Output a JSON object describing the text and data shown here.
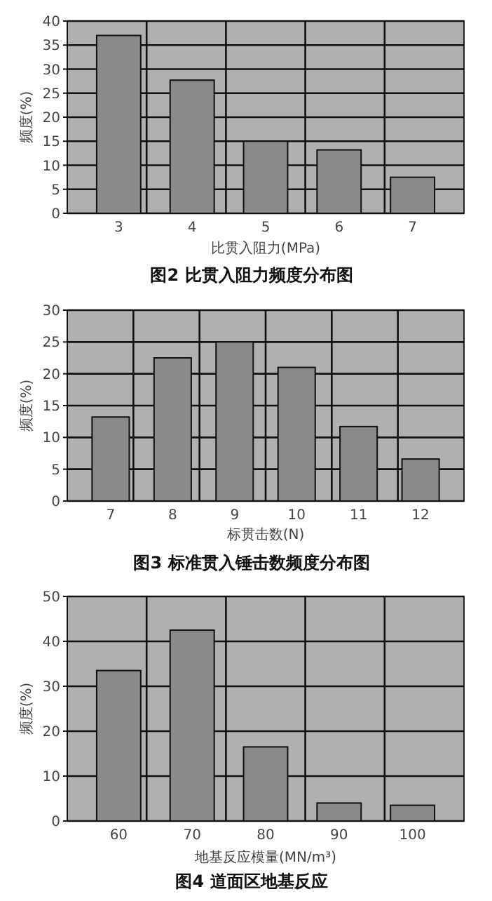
{
  "chart_data": [
    {
      "type": "bar",
      "title": "图2  比贯入阻力频度分布图",
      "xlabel": "比贯入阻力(MPa)",
      "ylabel": "频度(%)",
      "categories": [
        "3",
        "4",
        "5",
        "6",
        "7"
      ],
      "values": [
        37,
        27.7,
        15,
        13.2,
        7.5
      ],
      "color": "#8a8a8a",
      "ylim": [
        0,
        40
      ],
      "yticks": [
        0,
        5,
        10,
        15,
        20,
        25,
        30,
        35,
        40
      ],
      "grid": true
    },
    {
      "type": "bar",
      "title": "图3  标准贯入锤击数频度分布图",
      "xlabel": "标贯击数(N)",
      "ylabel": "频度(%)",
      "categories": [
        "7",
        "8",
        "9",
        "10",
        "11",
        "12"
      ],
      "values": [
        13.2,
        22.5,
        25,
        21,
        11.7,
        6.6
      ],
      "color": "#8a8a8a",
      "ylim": [
        0,
        30
      ],
      "yticks": [
        0,
        5,
        10,
        15,
        20,
        25,
        30
      ],
      "grid": true
    },
    {
      "type": "bar",
      "title": "图4  道面区地基反应",
      "xlabel": "地基反应模量(MN/m³)",
      "ylabel": "频度(%)",
      "categories": [
        "60",
        "70",
        "80",
        "90",
        "100"
      ],
      "values": [
        33.5,
        42.5,
        16.5,
        4,
        3.5
      ],
      "color": "#8a8a8a",
      "ylim": [
        0,
        50
      ],
      "yticks": [
        0,
        10,
        20,
        30,
        40,
        50
      ],
      "grid": true
    }
  ]
}
